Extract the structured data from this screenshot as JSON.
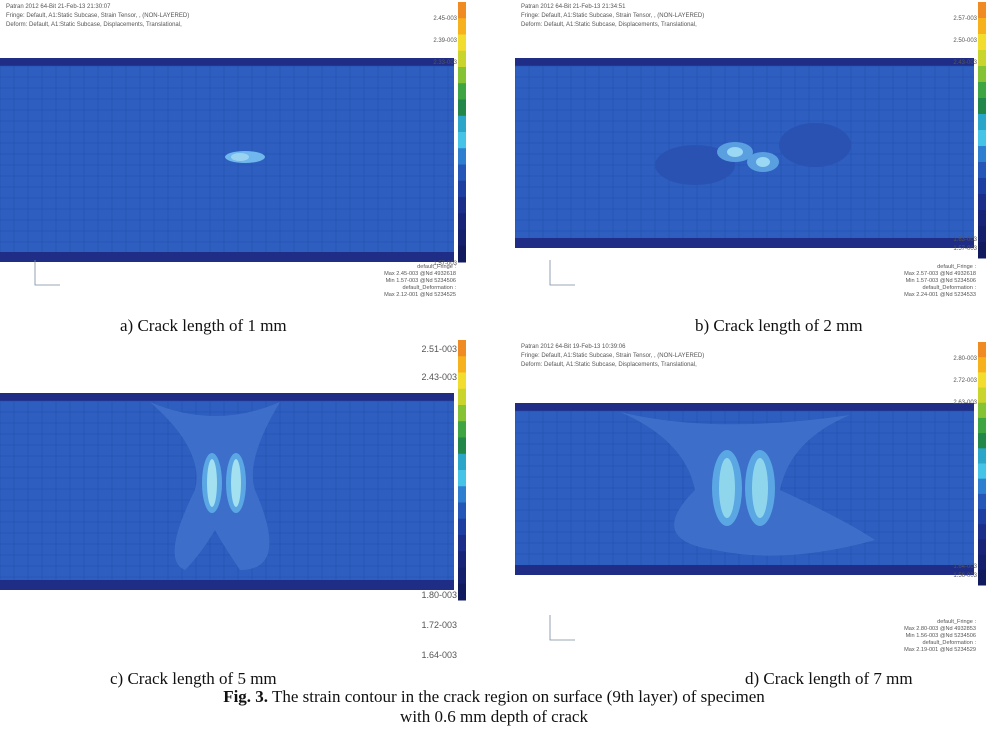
{
  "panels": [
    {
      "header": [
        "Patran 2012 64-Bit 21-Feb-13 21:30:07",
        "Fringe: Default, A1:Static Subcase, Strain Tensor, , (NON-LAYERED)",
        "Deform: Default, A1:Static Subcase, Displacements, Translational,"
      ],
      "legend_top": [
        "2.45-003",
        "2.39-003",
        "2.33-003"
      ],
      "legend_bottom": [
        "1.57-003"
      ],
      "info": [
        "default_Fringe :",
        "Max 2.45-003 @Nd 4932618",
        "Min 1.57-003 @Nd 5234506",
        "default_Deformation :",
        "Max 2.12-001 @Nd 5234525"
      ],
      "caption": "a) Crack length of 1 mm"
    },
    {
      "header": [
        "Patran 2012 64-Bit 21-Feb-13 21:34:51",
        "Fringe: Default, A1:Static Subcase, Strain Tensor, , (NON-LAYERED)",
        "Deform: Default, A1:Static Subcase, Displacements, Translational,"
      ],
      "legend_top": [
        "2.57-003",
        "2.50-003",
        "2.43-003"
      ],
      "legend_bottom": [
        "1.63-003",
        "1.57-003"
      ],
      "info": [
        "default_Fringe :",
        "Max 2.57-003 @Nd 4932618",
        "Min 1.57-003 @Nd 5234506",
        "default_Deformation :",
        "Max 2.24-001 @Nd 5234533"
      ],
      "caption": "b) Crack length of 2 mm"
    },
    {
      "legend_top": [
        "2.51-003",
        "2.43-003"
      ],
      "legend_bottom": [
        "1.80-003",
        "1.72-003",
        "1.64-003"
      ],
      "caption": "c) Crack length of 5 mm"
    },
    {
      "header": [
        "Patran 2012 64-Bit 19-Feb-13 10:39:06",
        "Fringe: Default, A1:Static Subcase, Strain Tensor, , (NON-LAYERED)",
        "Deform: Default, A1:Static Subcase, Displacements, Translational,"
      ],
      "legend_top": [
        "2.80-003",
        "2.72-003",
        "2.63-003"
      ],
      "legend_bottom": [
        "1.64-003",
        "1.56-003"
      ],
      "info": [
        "default_Fringe :",
        "Max 2.80-003 @Nd 4932853",
        "Min 1.56-003 @Nd 5234506",
        "default_Deformation :",
        "Max 2.19-001 @Nd 5234529"
      ],
      "caption": "d) Crack length of 7 mm"
    }
  ],
  "figure_caption": {
    "label": "Fig. 3.",
    "lines": [
      "The strain contour in the crack region on surface (9th layer) of specimen",
      "with 0.6 mm depth of crack"
    ]
  }
}
